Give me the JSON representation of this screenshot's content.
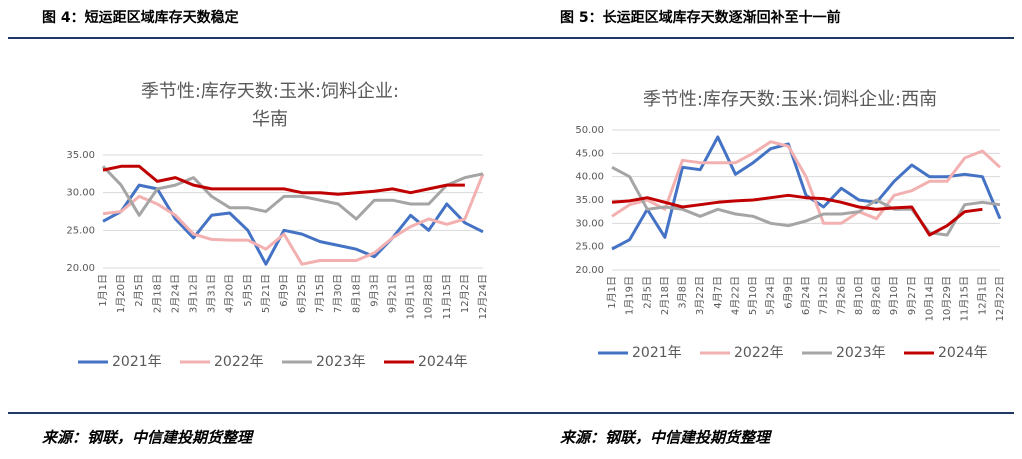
{
  "captions": [
    "图 4：短运距区域库存天数稳定",
    "图 5：长运距区域库存天数逐渐回补至十一前"
  ],
  "sources": [
    "来源：钢联，中信建投期货整理",
    "来源：钢联，中信建投期货整理"
  ],
  "chart_data": [
    {
      "type": "line",
      "title": [
        "季节性:库存天数:玉米:饲料企业:",
        "华南"
      ],
      "legend": "bottom",
      "categories": [
        "1月1日",
        "1月20日",
        "2月5日",
        "2月18日",
        "2月24日",
        "3月12日",
        "3月31日",
        "4月20日",
        "5月5日",
        "5月21日",
        "6月9日",
        "6月25日",
        "7月15日",
        "7月30日",
        "8月18日",
        "9月3日",
        "9月21日",
        "10月11日",
        "10月28日",
        "11月15日",
        "12月2日",
        "12月24日"
      ],
      "ylim": [
        20,
        35
      ],
      "yticks": [
        {
          "value": 20,
          "label": "20.00"
        },
        {
          "value": 25,
          "label": "25.00"
        },
        {
          "value": 30,
          "label": "30.00"
        },
        {
          "value": 35,
          "label": "35.00"
        }
      ],
      "series": [
        {
          "name": "2021年",
          "color": "#4472c4",
          "values": [
            26.2,
            27.5,
            31,
            30.5,
            26.5,
            24,
            27,
            27.3,
            25,
            20.5,
            25,
            24.5,
            23.5,
            23,
            22.5,
            21.5,
            24,
            27,
            25,
            28.5,
            26,
            24.8
          ]
        },
        {
          "name": "2022年",
          "color": "#f2b1b0",
          "values": [
            27.2,
            27.5,
            29.5,
            28.5,
            27,
            24.5,
            23.8,
            23.7,
            23.7,
            22.5,
            24.5,
            20.5,
            21,
            21,
            21,
            22,
            24,
            25.5,
            26.5,
            25.8,
            26.5,
            32.5
          ]
        },
        {
          "name": "2023年",
          "color": "#a5a5a5",
          "values": [
            33.5,
            31,
            27,
            30.5,
            31,
            32,
            29.5,
            28,
            28,
            27.5,
            29.5,
            29.5,
            29,
            28.5,
            26.5,
            29,
            29,
            28.5,
            28.5,
            31,
            32,
            32.5
          ]
        },
        {
          "name": "2024年",
          "color": "#c00000",
          "values": [
            33,
            33.5,
            33.5,
            31.5,
            32,
            31,
            30.5,
            30.5,
            30.5,
            30.5,
            30.5,
            30,
            30,
            29.8,
            30,
            30.2,
            30.5,
            30,
            30.5,
            31,
            31,
            null
          ]
        }
      ]
    },
    {
      "type": "line",
      "title": [
        "季节性:库存天数:玉米:饲料企业:西南"
      ],
      "legend": "bottom",
      "categories": [
        "1月1日",
        "1月19日",
        "2月5日",
        "2月18日",
        "3月8日",
        "3月22日",
        "4月7日",
        "4月22日",
        "5月10日",
        "5月24日",
        "6月9日",
        "6月24日",
        "7月12日",
        "7月26日",
        "8月10日",
        "8月26日",
        "9月10日",
        "9月27日",
        "10月14日",
        "10月29日",
        "11月15日",
        "12月1日",
        "12月22日"
      ],
      "ylim": [
        20,
        50
      ],
      "yticks": [
        {
          "value": 20,
          "label": "20.00"
        },
        {
          "value": 25,
          "label": "25.00"
        },
        {
          "value": 30,
          "label": "30.00"
        },
        {
          "value": 35,
          "label": "35.00"
        },
        {
          "value": 40,
          "label": "40.00"
        },
        {
          "value": 45,
          "label": "45.00"
        },
        {
          "value": 50,
          "label": "50.00"
        }
      ],
      "series": [
        {
          "name": "2021年",
          "color": "#4472c4",
          "values": [
            24.5,
            26.5,
            33,
            27,
            42,
            41.5,
            48.5,
            40.5,
            43,
            46,
            47,
            36,
            33.5,
            37.5,
            35,
            34.5,
            39,
            42.5,
            40,
            40,
            40.5,
            40,
            31
          ]
        },
        {
          "name": "2022年",
          "color": "#f2b1b0",
          "values": [
            31.5,
            34,
            35,
            33,
            43.5,
            43,
            43,
            43,
            45,
            47.5,
            46.5,
            40,
            30,
            30,
            32.5,
            31,
            36,
            37,
            39,
            39,
            44,
            45.5,
            42
          ]
        },
        {
          "name": "2023年",
          "color": "#a5a5a5",
          "values": [
            42,
            40,
            33,
            33.5,
            33,
            31.5,
            33,
            32,
            31.5,
            30,
            29.5,
            30.5,
            32,
            32,
            32.5,
            35,
            33,
            33,
            28,
            27.5,
            34,
            34.5,
            34
          ]
        },
        {
          "name": "2024年",
          "color": "#c00000",
          "values": [
            34.5,
            34.8,
            35.5,
            34.5,
            33.5,
            34,
            34.5,
            34.8,
            35,
            35.5,
            36,
            35.5,
            35.3,
            34.5,
            33.5,
            33,
            33.3,
            33.5,
            27.5,
            29.5,
            32.5,
            33,
            null
          ]
        }
      ]
    }
  ]
}
